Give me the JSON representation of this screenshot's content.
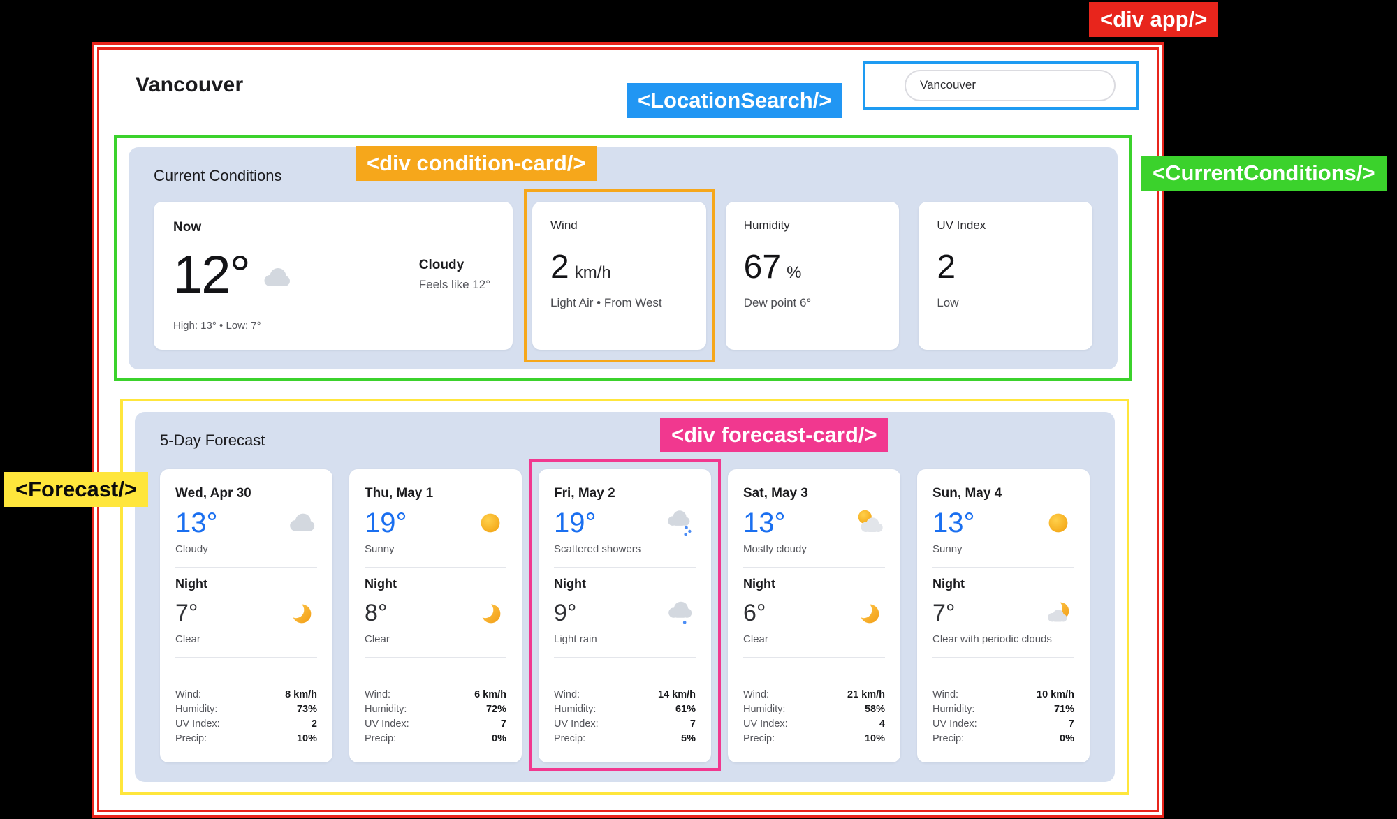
{
  "annotations": {
    "app": "<div app/>",
    "location_search": "<LocationSearch/>",
    "current_conditions": "<CurrentConditions/>",
    "condition_card": "<div condition-card/>",
    "forecast": "<Forecast/>",
    "forecast_card": "<div forecast-card/>",
    "colors": {
      "red": "#e8251c",
      "blue": "#1e9bf2",
      "green": "#3bd22c",
      "orange": "#f6a71b",
      "yellow": "#ffe63c",
      "pink": "#f1388f"
    }
  },
  "header": {
    "title": "Vancouver"
  },
  "search": {
    "value": "Vancouver"
  },
  "current": {
    "heading": "Current Conditions",
    "now": {
      "label": "Now",
      "temp": "12°",
      "icon": "cloudy",
      "condition": "Cloudy",
      "feels_like": "Feels like 12°",
      "high_low": "High: 13° • Low: 7°"
    },
    "cards": [
      {
        "title": "Wind",
        "value": "2",
        "unit": "km/h",
        "detail": "Light Air • From West"
      },
      {
        "title": "Humidity",
        "value": "67",
        "unit": "%",
        "detail": "Dew point 6°"
      },
      {
        "title": "UV Index",
        "value": "2",
        "unit": "",
        "detail": "Low"
      }
    ]
  },
  "forecast": {
    "heading": "5-Day Forecast",
    "night_label": "Night",
    "stat_labels": {
      "wind": "Wind:",
      "humidity": "Humidity:",
      "uv": "UV Index:",
      "precip": "Precip:"
    },
    "days": [
      {
        "date": "Wed, Apr 30",
        "day_temp": "13°",
        "day_icon": "cloudy",
        "day_condition": "Cloudy",
        "night_temp": "7°",
        "night_icon": "clear-night",
        "night_condition": "Clear",
        "wind": "8 km/h",
        "humidity": "73%",
        "uv": "2",
        "precip": "10%"
      },
      {
        "date": "Thu, May 1",
        "day_temp": "19°",
        "day_icon": "sunny",
        "day_condition": "Sunny",
        "night_temp": "8°",
        "night_icon": "clear-night",
        "night_condition": "Clear",
        "wind": "6 km/h",
        "humidity": "72%",
        "uv": "7",
        "precip": "0%"
      },
      {
        "date": "Fri, May 2",
        "day_temp": "19°",
        "day_icon": "scattered-showers",
        "day_condition": "Scattered showers",
        "night_temp": "9°",
        "night_icon": "light-rain-night",
        "night_condition": "Light rain",
        "wind": "14 km/h",
        "humidity": "61%",
        "uv": "7",
        "precip": "5%"
      },
      {
        "date": "Sat, May 3",
        "day_temp": "13°",
        "day_icon": "mostly-cloudy",
        "day_condition": "Mostly cloudy",
        "night_temp": "6°",
        "night_icon": "clear-night",
        "night_condition": "Clear",
        "wind": "21 km/h",
        "humidity": "58%",
        "uv": "4",
        "precip": "10%"
      },
      {
        "date": "Sun, May 4",
        "day_temp": "13°",
        "day_icon": "sunny",
        "day_condition": "Sunny",
        "night_temp": "7°",
        "night_icon": "moon-clouds",
        "night_condition": "Clear with periodic clouds",
        "wind": "10 km/h",
        "humidity": "71%",
        "uv": "7",
        "precip": "0%"
      }
    ]
  }
}
